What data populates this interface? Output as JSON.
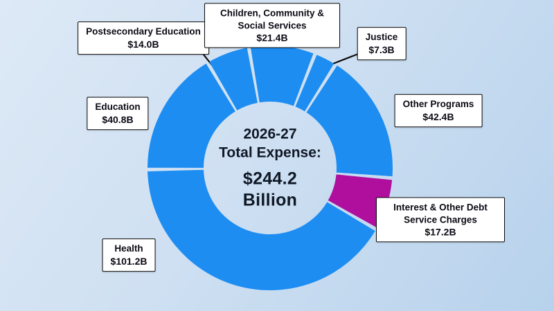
{
  "chart_data": {
    "type": "donut",
    "title": "2026-27 Total Expense",
    "center": {
      "period": "2026-27",
      "label": "Total Expense:",
      "amount": "$244.2",
      "unit": "Billion"
    },
    "total_value": 244.2,
    "start_angle": -10,
    "inner_radius": 96,
    "outer_radius": 177,
    "colors": {
      "primary": "#1d8df2",
      "highlight": "#b00f9e",
      "background_top": "#dde9f6",
      "background_bottom": "#b7d2ec"
    },
    "legend_position": "callout-boxes",
    "segments": [
      {
        "id": "children-community-social-services",
        "name": "Children, Community & Social Services",
        "amount": "$21.4B",
        "value": 21.4,
        "color": "#1d8df2"
      },
      {
        "id": "justice",
        "name": "Justice",
        "amount": "$7.3B",
        "value": 7.3,
        "color": "#1d8df2"
      },
      {
        "id": "other-programs",
        "name": "Other Programs",
        "amount": "$42.4B",
        "value": 42.4,
        "color": "#1d8df2"
      },
      {
        "id": "interest-debt-service",
        "name": "Interest & Other Debt Service Charges",
        "amount": "$17.2B",
        "value": 17.2,
        "color": "#b00f9e"
      },
      {
        "id": "health",
        "name": "Health",
        "amount": "$101.2B",
        "value": 101.2,
        "color": "#1d8df2"
      },
      {
        "id": "education",
        "name": "Education",
        "amount": "$40.8B",
        "value": 40.8,
        "color": "#1d8df2"
      },
      {
        "id": "postsecondary-education",
        "name": "Postsecondary Education",
        "amount": "$14.0B",
        "value": 14.0,
        "color": "#1d8df2"
      }
    ]
  }
}
